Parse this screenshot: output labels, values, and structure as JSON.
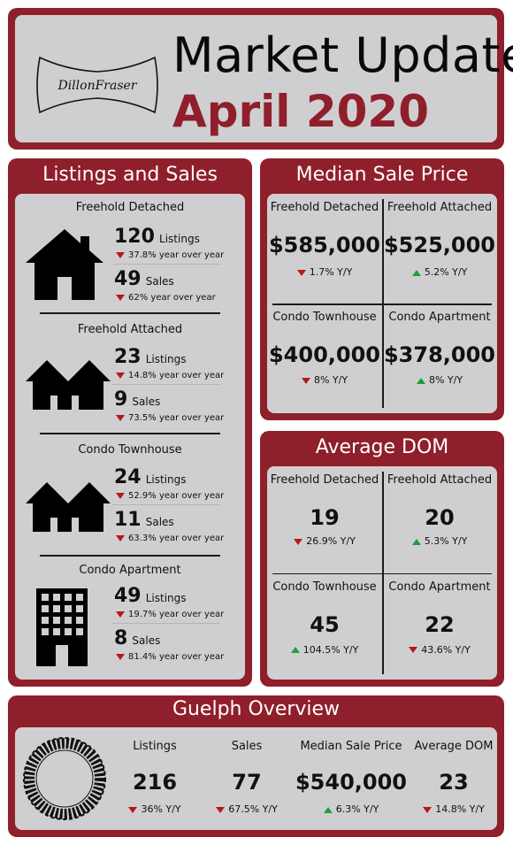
{
  "header": {
    "logo_text": "DillonFraser",
    "title": "Market Update",
    "date": "April 2020"
  },
  "listings_sales": {
    "title": "Listings and Sales",
    "sections": [
      {
        "name": "Freehold Detached",
        "icon": "house-icon",
        "listings": "120",
        "listings_label": "Listings",
        "listings_change": "37.8% year over year",
        "sales": "49",
        "sales_label": "Sales",
        "sales_change": "62% year over year"
      },
      {
        "name": "Freehold Attached",
        "icon": "attached-houses-icon",
        "listings": "23",
        "listings_label": "Listings",
        "listings_change": "14.8% year over year",
        "sales": "9",
        "sales_label": "Sales",
        "sales_change": "73.5% year over year"
      },
      {
        "name": "Condo Townhouse",
        "icon": "townhouse-icon",
        "listings": "24",
        "listings_label": "Listings",
        "listings_change": "52.9% year over year",
        "sales": "11",
        "sales_label": "Sales",
        "sales_change": "63.3% year over year"
      },
      {
        "name": "Condo Apartment",
        "icon": "apartment-building-icon",
        "listings": "49",
        "listings_label": "Listings",
        "listings_change": "19.7% year over year",
        "sales": "8",
        "sales_label": "Sales",
        "sales_change": "81.4% year over year"
      }
    ]
  },
  "median_sale_price": {
    "title": "Median Sale Price",
    "cells": [
      {
        "name": "Freehold Detached",
        "value": "$585,000",
        "change": "1.7% Y/Y",
        "direction": "down"
      },
      {
        "name": "Freehold Attached",
        "value": "$525,000",
        "change": "5.2% Y/Y",
        "direction": "up"
      },
      {
        "name": "Condo Townhouse",
        "value": "$400,000",
        "change": "8% Y/Y",
        "direction": "down"
      },
      {
        "name": "Condo Apartment",
        "value": "$378,000",
        "change": "8% Y/Y",
        "direction": "up"
      }
    ]
  },
  "average_dom": {
    "title": "Average DOM",
    "cells": [
      {
        "name": "Freehold Detached",
        "value": "19",
        "change": "26.9% Y/Y",
        "direction": "down"
      },
      {
        "name": "Freehold Attached",
        "value": "20",
        "change": "5.3% Y/Y",
        "direction": "up"
      },
      {
        "name": "Condo Townhouse",
        "value": "45",
        "change": "104.5% Y/Y",
        "direction": "up"
      },
      {
        "name": "Condo Apartment",
        "value": "22",
        "change": "43.6% Y/Y",
        "direction": "down"
      }
    ]
  },
  "overview": {
    "title": "Guelph Overview",
    "icon": "city-skyline-ring-icon",
    "items": [
      {
        "name": "Listings",
        "value": "216",
        "change": "36% Y/Y",
        "direction": "down"
      },
      {
        "name": "Sales",
        "value": "77",
        "change": "67.5% Y/Y",
        "direction": "down"
      },
      {
        "name": "Median Sale Price",
        "value": "$540,000",
        "change": "6.3% Y/Y",
        "direction": "up"
      },
      {
        "name": "Average DOM",
        "value": "23",
        "change": "14.8% Y/Y",
        "direction": "down"
      }
    ]
  },
  "colors": {
    "brand": "#8f1f2a",
    "panel": "#cfcfd1",
    "up": "#1f9e3a",
    "down": "#b21a1a"
  }
}
